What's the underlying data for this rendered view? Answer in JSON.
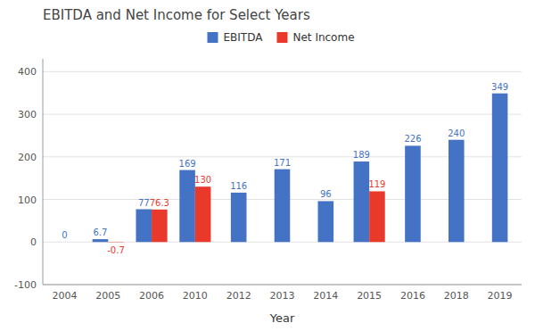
{
  "chart_data": {
    "type": "bar",
    "title": "EBITDA and Net Income for Select Years",
    "xlabel": "Year",
    "categories": [
      "2004",
      "2005",
      "2006",
      "2010",
      "2012",
      "2013",
      "2014",
      "2015",
      "2016",
      "2018",
      "2019"
    ],
    "series": [
      {
        "name": "EBITDA",
        "color": "#4472C4",
        "values": [
          0,
          6.7,
          77,
          169,
          116,
          171,
          96,
          189,
          226,
          240,
          349
        ]
      },
      {
        "name": "Net Income",
        "color": "#E8392A",
        "values": [
          null,
          -0.7,
          76.3,
          130,
          null,
          null,
          null,
          119,
          null,
          null,
          null
        ]
      }
    ],
    "ylim": [
      -100,
      430
    ],
    "yticks": [
      -100,
      0,
      100,
      200,
      300,
      400
    ],
    "grid": true,
    "legend": "top",
    "data_labels": true
  }
}
